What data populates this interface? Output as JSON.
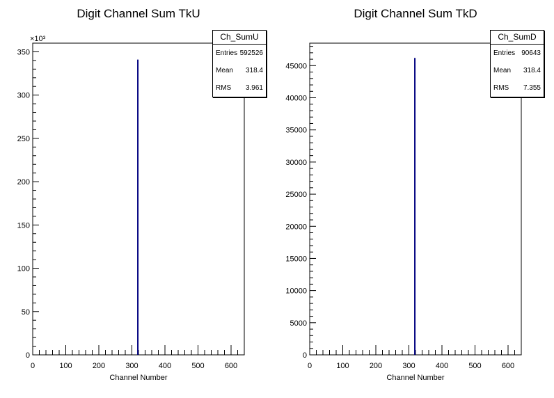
{
  "chart_data": [
    {
      "type": "bar",
      "title": "Digit Channel Sum TkU",
      "xlabel": "Channel Number",
      "ylabel": "",
      "exponent_label": "×10³",
      "xlim": [
        0,
        640
      ],
      "ylim": [
        0,
        360000
      ],
      "x_ticks": [
        0,
        100,
        200,
        300,
        400,
        500,
        600
      ],
      "y_ticks": [
        0,
        50000,
        100000,
        150000,
        200000,
        250000,
        300000,
        350000
      ],
      "y_tick_labels": [
        "0",
        "50",
        "100",
        "150",
        "200",
        "250",
        "300",
        "350"
      ],
      "color": "#00007f",
      "bins": [
        {
          "x": 318,
          "value": 341000
        }
      ],
      "stats": {
        "name": "Ch_SumU",
        "entries": "592526",
        "mean": "318.4",
        "rms": "3.961"
      }
    },
    {
      "type": "bar",
      "title": "Digit Channel Sum TkD",
      "xlabel": "Channel Number",
      "ylabel": "",
      "exponent_label": "",
      "xlim": [
        0,
        640
      ],
      "ylim": [
        0,
        48500
      ],
      "x_ticks": [
        0,
        100,
        200,
        300,
        400,
        500,
        600
      ],
      "y_ticks": [
        0,
        5000,
        10000,
        15000,
        20000,
        25000,
        30000,
        35000,
        40000,
        45000
      ],
      "y_tick_labels": [
        "0",
        "5000",
        "10000",
        "15000",
        "20000",
        "25000",
        "30000",
        "35000",
        "40000",
        "45000"
      ],
      "color": "#00007f",
      "bins": [
        {
          "x": 318,
          "value": 46200
        }
      ],
      "stats": {
        "name": "Ch_SumD",
        "entries": "90643",
        "mean": "318.4",
        "rms": "7.355"
      }
    }
  ],
  "stats_labels": {
    "entries": "Entries",
    "mean": "Mean",
    "rms": "RMS"
  }
}
